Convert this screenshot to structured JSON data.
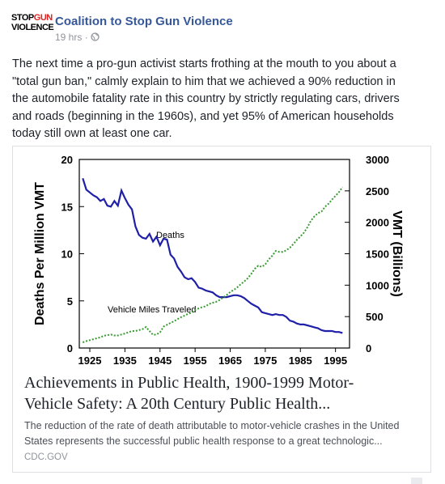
{
  "post": {
    "logo": {
      "stop": "STOP",
      "gun": "GUN",
      "violence": "VIOLENCE"
    },
    "page_name": "Coalition to Stop Gun Violence",
    "time": "19 hrs",
    "body_lines": [
      "The next time a pro-gun activist starts frothing at the mouth to you about a",
      "\"total gun ban,\" calmly explain to him that we achieved a 90% reduction in",
      "the automobile fatality rate in this country by strictly regulating cars, drivers",
      "and roads (beginning in the 1960s), and yet 95% of American households",
      "today still own at least one car."
    ]
  },
  "link": {
    "title_lines": [
      "Achievements in Public Health, 1900-1999 Motor-",
      "Vehicle Safety: A 20th Century Public Health..."
    ],
    "description_lines": [
      "The reduction of the rate of death attributable to motor-vehicle crashes in the United",
      "States represents the successful public health response to a great technologic..."
    ],
    "domain": "CDC.GOV"
  },
  "chart_data": {
    "type": "line",
    "ylabel": "Deaths Per Million VMT",
    "y2label": "VMT (Billions)",
    "annotations": [
      "Deaths",
      "Vehicle Miles Traveled"
    ],
    "xlim": [
      1922,
      1999
    ],
    "xticks": [
      1925,
      1935,
      1945,
      1955,
      1965,
      1975,
      1985,
      1995
    ],
    "ylim": [
      0,
      20
    ],
    "yticks": [
      0,
      5,
      10,
      15,
      20
    ],
    "y2lim": [
      0,
      3000
    ],
    "y2ticks": [
      0,
      500,
      1000,
      1500,
      2000,
      2500,
      3000
    ],
    "x": [
      1923,
      1924,
      1925,
      1926,
      1927,
      1928,
      1929,
      1930,
      1931,
      1932,
      1933,
      1934,
      1935,
      1936,
      1937,
      1938,
      1939,
      1940,
      1941,
      1942,
      1943,
      1944,
      1945,
      1946,
      1947,
      1948,
      1949,
      1950,
      1951,
      1952,
      1953,
      1954,
      1955,
      1956,
      1957,
      1958,
      1959,
      1960,
      1961,
      1962,
      1963,
      1964,
      1965,
      1966,
      1967,
      1968,
      1969,
      1970,
      1971,
      1972,
      1973,
      1974,
      1975,
      1976,
      1977,
      1978,
      1979,
      1980,
      1981,
      1982,
      1983,
      1984,
      1985,
      1986,
      1987,
      1988,
      1989,
      1990,
      1991,
      1992,
      1993,
      1994,
      1995,
      1996,
      1997
    ],
    "series": [
      {
        "name": "Deaths",
        "color": "#1f1fa8",
        "axis": "y",
        "values": [
          18,
          16.8,
          16.5,
          16.2,
          16.0,
          15.6,
          15.8,
          15.1,
          15.0,
          15.6,
          15.1,
          16.7,
          15.9,
          15.2,
          14.7,
          12.9,
          12.0,
          11.7,
          11.6,
          12.1,
          11.3,
          11.8,
          10.9,
          11.6,
          11.5,
          9.9,
          9.5,
          8.6,
          8.1,
          7.5,
          7.3,
          7.4,
          7.0,
          6.4,
          6.3,
          6.1,
          6.0,
          5.9,
          5.6,
          5.4,
          5.4,
          5.4,
          5.5,
          5.6,
          5.6,
          5.5,
          5.3,
          5.0,
          4.7,
          4.5,
          4.3,
          3.8,
          3.7,
          3.6,
          3.5,
          3.6,
          3.5,
          3.5,
          3.3,
          2.9,
          2.8,
          2.6,
          2.5,
          2.5,
          2.4,
          2.3,
          2.2,
          2.1,
          1.9,
          1.8,
          1.8,
          1.8,
          1.7,
          1.7,
          1.6
        ]
      },
      {
        "name": "Vehicle Miles Traveled",
        "color": "#3a9a32",
        "axis": "y2",
        "values": [
          90,
          110,
          125,
          140,
          155,
          170,
          195,
          205,
          215,
          200,
          200,
          215,
          230,
          250,
          270,
          270,
          285,
          300,
          335,
          270,
          210,
          215,
          250,
          340,
          370,
          400,
          425,
          460,
          490,
          515,
          545,
          560,
          605,
          630,
          650,
          665,
          700,
          720,
          735,
          765,
          805,
          845,
          890,
          925,
          965,
          1015,
          1060,
          1110,
          1180,
          1260,
          1310,
          1290,
          1330,
          1410,
          1470,
          1545,
          1530,
          1530,
          1555,
          1595,
          1655,
          1720,
          1775,
          1835,
          1920,
          2025,
          2095,
          2145,
          2170,
          2245,
          2295,
          2360,
          2420,
          2480,
          2560
        ]
      }
    ]
  }
}
